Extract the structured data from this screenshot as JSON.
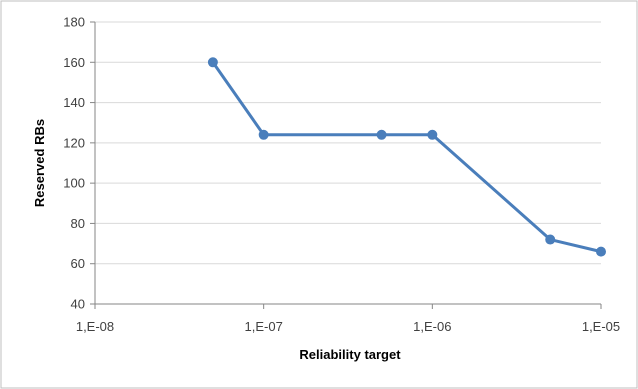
{
  "chart_data": {
    "type": "line",
    "title": "",
    "xlabel": "Reliability target",
    "ylabel": "Reserved RBs",
    "x_scale": "log",
    "xlim": [
      1e-08,
      1e-05
    ],
    "ylim": [
      40,
      180
    ],
    "y_ticks": [
      40,
      60,
      80,
      100,
      120,
      140,
      160,
      180
    ],
    "x_ticks": [
      {
        "value": 1e-08,
        "label": "1,E-08"
      },
      {
        "value": 1e-07,
        "label": "1,E-07"
      },
      {
        "value": 1e-06,
        "label": "1,E-06"
      },
      {
        "value": 1e-05,
        "label": "1,E-05"
      }
    ],
    "grid": "horizontal",
    "legend": "none",
    "series": [
      {
        "color": "#4a7ebb",
        "points": [
          {
            "x": 5e-08,
            "y": 160
          },
          {
            "x": 1e-07,
            "y": 124
          },
          {
            "x": 5e-07,
            "y": 124
          },
          {
            "x": 1e-06,
            "y": 124
          },
          {
            "x": 5e-06,
            "y": 72
          },
          {
            "x": 1e-05,
            "y": 66
          }
        ]
      }
    ]
  }
}
